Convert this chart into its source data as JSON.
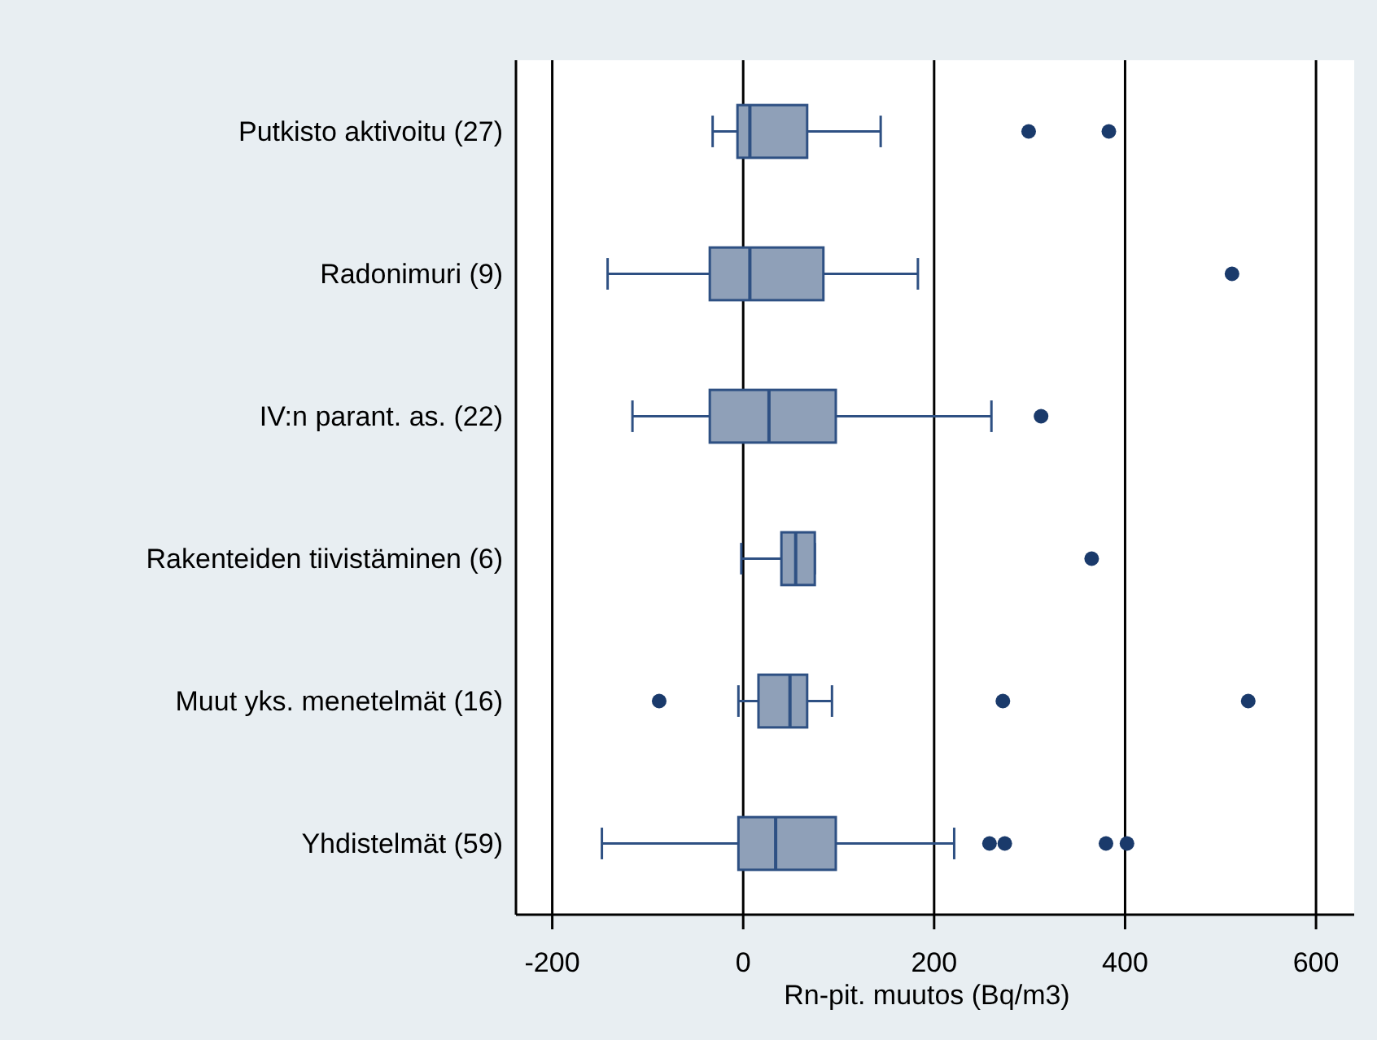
{
  "chart_data": {
    "type": "box",
    "orientation": "horizontal",
    "xlabel": "Rn-pit. muutos (Bq/m3)",
    "categories": [
      "Putkisto aktivoitu (27)",
      "Radonimuri (9)",
      "IV:n parant. as. (22)",
      "Rakenteiden tiivistäminen (6)",
      "Muut yks. menetelmät (16)",
      "Yhdistelmät (59)"
    ],
    "color": "#8fa0b8",
    "boxes": [
      {
        "low": -32,
        "q1": -6,
        "median": 7,
        "q3": 67,
        "high": 144,
        "outliers": [
          299,
          383
        ]
      },
      {
        "low": -142,
        "q1": -35,
        "median": 7,
        "q3": 84,
        "high": 183,
        "outliers": [
          512
        ]
      },
      {
        "low": -116,
        "q1": -35,
        "median": 27,
        "q3": 97,
        "high": 260,
        "outliers": [
          312
        ]
      },
      {
        "low": -2,
        "q1": 40,
        "median": 55,
        "q3": 75,
        "high": 75,
        "outliers": [
          365
        ]
      },
      {
        "low": -5,
        "q1": 16,
        "median": 49,
        "q3": 67,
        "high": 93,
        "outliers": [
          -88,
          272,
          529
        ]
      },
      {
        "low": -148,
        "q1": -5,
        "median": 34,
        "q3": 97,
        "high": 221,
        "outliers": [
          258,
          274,
          380,
          402
        ]
      }
    ],
    "xlim": [
      -238,
      640
    ],
    "xticks": [
      -200,
      0,
      200,
      400,
      600
    ],
    "grid": "x"
  }
}
